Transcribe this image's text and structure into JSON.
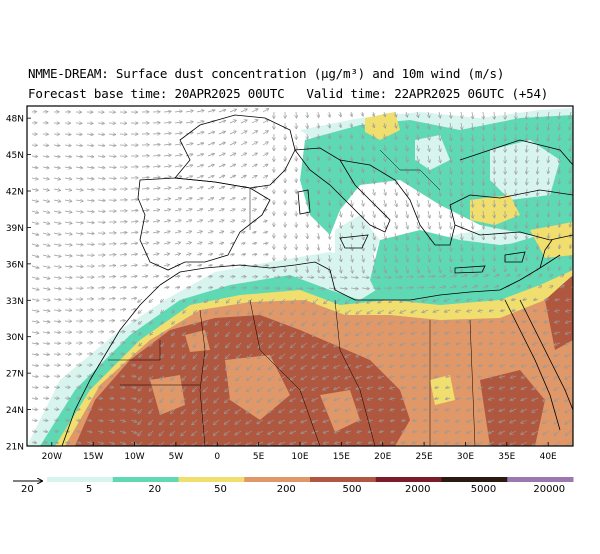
{
  "title_line1": "NMME-DREAM: Surface dust concentration (µg/m³) and 10m wind (m/s)",
  "title_line2": "Forecast base time: 20APR2025 00UTC   Valid time: 22APR2025 06UTC (+54)",
  "lat_labels": [
    "48N",
    "45N",
    "42N",
    "39N",
    "36N",
    "33N",
    "30N",
    "27N",
    "24N",
    "21N"
  ],
  "lat_values": [
    48,
    45,
    42,
    39,
    36,
    33,
    30,
    27,
    24,
    21
  ],
  "lon_labels": [
    "20W",
    "15W",
    "10W",
    "5W",
    "0",
    "5E",
    "10E",
    "15E",
    "20E",
    "25E",
    "30E",
    "35E",
    "40E"
  ],
  "lon_values": [
    -20,
    -15,
    -10,
    -5,
    0,
    5,
    10,
    15,
    20,
    25,
    30,
    35,
    40
  ],
  "extent": {
    "lon_min": -23,
    "lon_max": 43,
    "lat_min": 21,
    "lat_max": 49
  },
  "wind_reference": {
    "label": "20"
  },
  "colorbar": {
    "labels": [
      "5",
      "20",
      "50",
      "200",
      "500",
      "2000",
      "5000",
      "20000"
    ],
    "colors": [
      "#d7f5ee",
      "#5fd9b3",
      "#f0de6e",
      "#e09868",
      "#b0573f",
      "#7a1c2c",
      "#2b1a12",
      "#9b78b0"
    ]
  },
  "legend_colors": {
    "land": "#ffffff",
    "sea": "#ffffff",
    "c5": "#d7f5ee",
    "c20": "#5fd9b3",
    "c50": "#f0de6e",
    "c200": "#e09868",
    "c500": "#b0573f",
    "arrow": "#9a9a9a"
  }
}
